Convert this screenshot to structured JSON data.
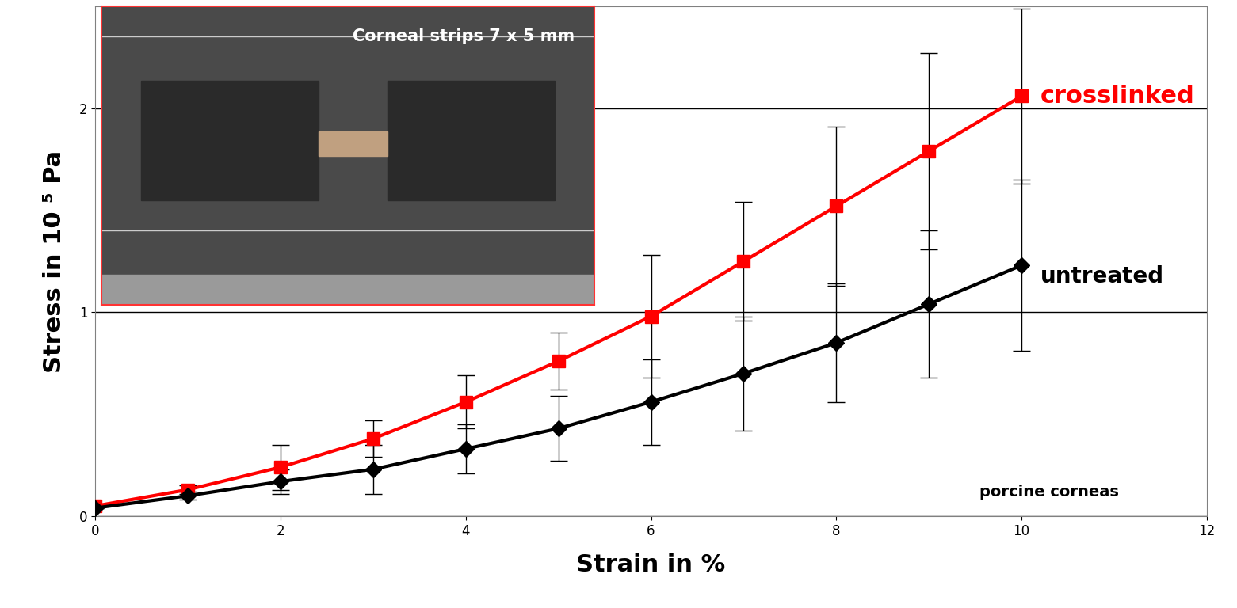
{
  "chart_data": {
    "type": "line",
    "x_label": "Strain in %",
    "y_label": "Stress in 10 ⁵ Pa",
    "x": [
      0,
      1,
      2,
      3,
      4,
      5,
      6,
      7,
      8,
      9,
      10
    ],
    "series": [
      {
        "name": "crosslinked",
        "color": "#ff0000",
        "marker": "square",
        "line_style": "solid",
        "values": [
          0.05,
          0.13,
          0.24,
          0.38,
          0.56,
          0.76,
          0.98,
          1.25,
          1.52,
          1.79,
          2.06
        ],
        "error": [
          0.0,
          0.02,
          0.11,
          0.09,
          0.13,
          0.14,
          0.3,
          0.29,
          0.39,
          0.48,
          0.43
        ]
      },
      {
        "name": "untreated",
        "color": "#000000",
        "marker": "diamond",
        "line_style": "solid",
        "values": [
          0.04,
          0.1,
          0.17,
          0.23,
          0.33,
          0.43,
          0.56,
          0.7,
          0.85,
          1.04,
          1.23
        ],
        "error": [
          0.0,
          0.02,
          0.06,
          0.12,
          0.12,
          0.16,
          0.21,
          0.28,
          0.29,
          0.36,
          0.42
        ]
      }
    ],
    "annotations": [
      "porcine corneas"
    ],
    "inset": {
      "text": "Corneal strips 7 x 5 mm"
    },
    "xlim": [
      0,
      12
    ],
    "xticks": [
      0,
      2,
      4,
      6,
      8,
      10,
      12
    ],
    "ylim": [
      0,
      2.5
    ],
    "yticks": [
      0,
      1,
      2
    ],
    "grid": true
  }
}
